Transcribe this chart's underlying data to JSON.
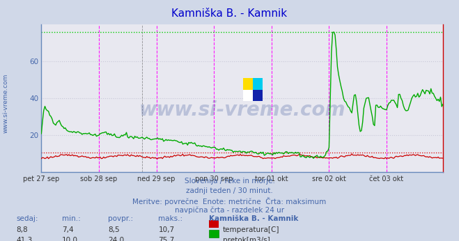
{
  "title": "Kamniška B. - Kamnik",
  "title_color": "#0000cc",
  "bg_color": "#d0d8e8",
  "plot_bg_color": "#e8e8f0",
  "grid_color": "#c8c8d8",
  "x_labels": [
    "pet 27 sep",
    "sob 28 sep",
    "ned 29 sep",
    "pon 30 sep",
    "tor 01 okt",
    "sre 02 okt",
    "čet 03 okt"
  ],
  "n_points": 336,
  "y_min": 0,
  "y_max": 80,
  "y_ticks": [
    20,
    40,
    60
  ],
  "temp_color": "#cc0000",
  "flow_color": "#00aa00",
  "vline_color": "#ff00ff",
  "footer_text1": "Slovenija / reke in morje.",
  "footer_text2": "zadnji teden / 30 minut.",
  "footer_text3": "Meritve: povrečne  Enote: metrične  Črta: maksimum",
  "footer_text4": "navpična črta - razdelek 24 ur",
  "footer_color": "#4466aa",
  "table_headers": [
    "sedaj:",
    "min.:",
    "povpr.:",
    "maks.:",
    "Kamniška B. - Kamnik"
  ],
  "temp_row": [
    "8,8",
    "7,4",
    "8,5",
    "10,7"
  ],
  "flow_row": [
    "41,3",
    "10,0",
    "24,0",
    "75,7"
  ],
  "temp_label": "temperatura[C]",
  "flow_label": "pretok[m3/s]",
  "temp_max": 10.7,
  "flow_max": 75.7,
  "temp_min": 7.4,
  "flow_min": 10.0,
  "watermark": "www.si-vreme.com",
  "watermark_color": "#1a3a8a",
  "left_label": "www.si-vreme.com",
  "left_label_color": "#4466aa"
}
